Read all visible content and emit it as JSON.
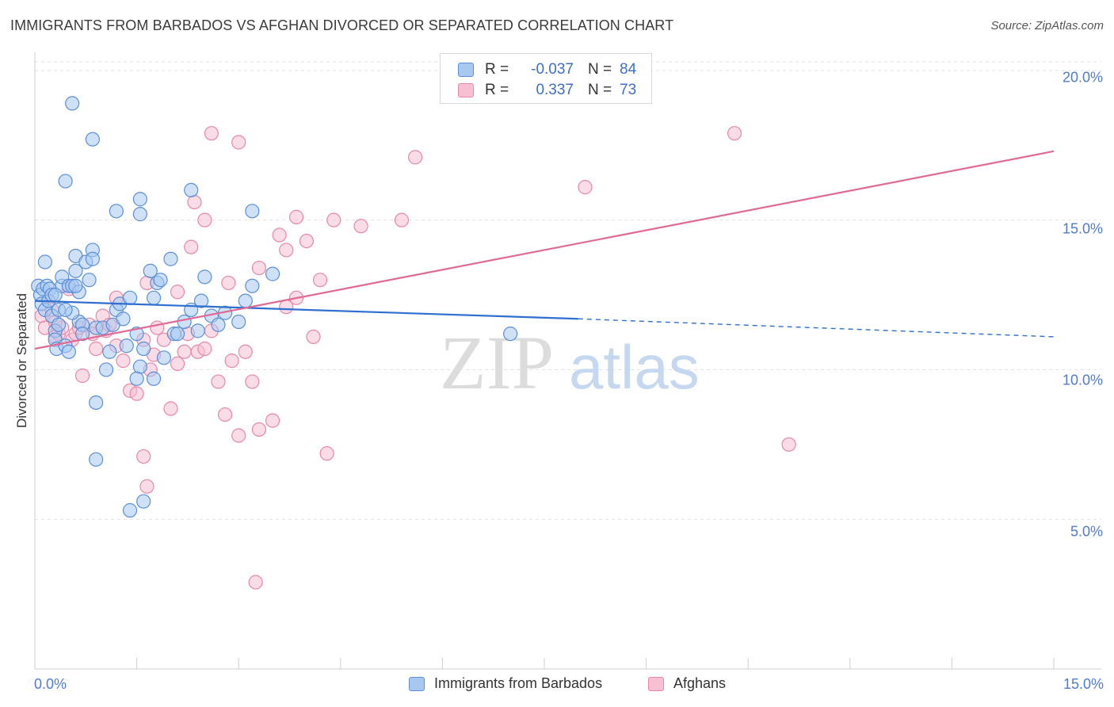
{
  "header": {
    "title": "IMMIGRANTS FROM BARBADOS VS AFGHAN DIVORCED OR SEPARATED CORRELATION CHART",
    "source": "Source: ZipAtlas.com"
  },
  "watermark": {
    "zip": "ZIP",
    "atlas": "atlas"
  },
  "legend_top": {
    "rows": [
      {
        "r_label": "R =",
        "r_value": "-0.037",
        "n_label": "N =",
        "n_value": "84"
      },
      {
        "r_label": "R =",
        "r_value": "0.337",
        "n_label": "N =",
        "n_value": "73"
      }
    ]
  },
  "legend_bottom": {
    "items": [
      "Immigrants from Barbados",
      "Afghans"
    ]
  },
  "colors": {
    "blue_fill": "#a8c8f0",
    "blue_stroke": "#5b8fd9",
    "blue_line": "#2f6fcf",
    "pink_fill": "#f6c0d2",
    "pink_stroke": "#e887a8",
    "pink_line": "#e06a95",
    "tick_label": "#4f7bd0",
    "grid": "#e2e2e2"
  },
  "chart_data": {
    "type": "scatter",
    "title": "IMMIGRANTS FROM BARBADOS VS AFGHAN DIVORCED OR SEPARATED CORRELATION CHART",
    "xlabel": "",
    "ylabel": "Divorced or Separated",
    "xlim": [
      0,
      15
    ],
    "ylim": [
      0,
      20.5
    ],
    "x_tick_labels": [
      "0.0%",
      "15.0%"
    ],
    "y_ticks": [
      5,
      10,
      15,
      20
    ],
    "y_tick_labels": [
      "5.0%",
      "10.0%",
      "15.0%",
      "20.0%"
    ],
    "grid": true,
    "legend_position": "top-center",
    "series": [
      {
        "name": "Immigrants from Barbados",
        "color": "blue",
        "r": -0.037,
        "n": 84,
        "trend": {
          "x0": 0,
          "y0": 12.3,
          "x1": 8.0,
          "y1": 11.7,
          "dashed_to_x": 15.0,
          "dashed_to_y": 11.1
        },
        "points": [
          [
            0.05,
            12.8
          ],
          [
            0.08,
            12.5
          ],
          [
            0.1,
            12.2
          ],
          [
            0.12,
            12.7
          ],
          [
            0.15,
            12.0
          ],
          [
            0.18,
            12.8
          ],
          [
            0.2,
            12.3
          ],
          [
            0.22,
            12.7
          ],
          [
            0.25,
            11.8
          ],
          [
            0.3,
            11.3
          ],
          [
            0.3,
            11.0
          ],
          [
            0.32,
            10.7
          ],
          [
            0.35,
            12.0
          ],
          [
            0.4,
            12.8
          ],
          [
            0.4,
            13.1
          ],
          [
            0.45,
            10.8
          ],
          [
            0.5,
            10.6
          ],
          [
            0.5,
            12.8
          ],
          [
            0.55,
            12.8
          ],
          [
            0.6,
            13.3
          ],
          [
            0.6,
            13.8
          ],
          [
            0.65,
            12.6
          ],
          [
            0.65,
            11.6
          ],
          [
            0.7,
            11.5
          ],
          [
            0.75,
            13.6
          ],
          [
            0.8,
            13.0
          ],
          [
            0.85,
            14.0
          ],
          [
            0.85,
            13.7
          ],
          [
            0.9,
            11.4
          ],
          [
            1.0,
            11.4
          ],
          [
            1.05,
            10.0
          ],
          [
            1.1,
            10.6
          ],
          [
            1.15,
            11.5
          ],
          [
            1.2,
            12.0
          ],
          [
            1.25,
            12.2
          ],
          [
            1.3,
            11.7
          ],
          [
            1.35,
            10.8
          ],
          [
            1.4,
            12.4
          ],
          [
            1.5,
            11.2
          ],
          [
            1.55,
            10.1
          ],
          [
            1.6,
            10.7
          ],
          [
            1.7,
            13.3
          ],
          [
            1.75,
            12.4
          ],
          [
            1.8,
            12.9
          ],
          [
            1.85,
            13.0
          ],
          [
            1.9,
            10.4
          ],
          [
            2.0,
            13.7
          ],
          [
            2.05,
            11.2
          ],
          [
            2.1,
            11.2
          ],
          [
            2.2,
            11.6
          ],
          [
            2.3,
            12.0
          ],
          [
            2.4,
            11.3
          ],
          [
            2.45,
            12.3
          ],
          [
            2.5,
            13.1
          ],
          [
            2.6,
            11.8
          ],
          [
            2.7,
            11.5
          ],
          [
            2.8,
            11.9
          ],
          [
            3.0,
            11.6
          ],
          [
            3.1,
            12.3
          ],
          [
            3.2,
            12.8
          ],
          [
            3.5,
            13.2
          ],
          [
            0.25,
            12.5
          ],
          [
            0.35,
            11.5
          ],
          [
            0.55,
            11.9
          ],
          [
            0.7,
            11.2
          ],
          [
            0.15,
            13.6
          ],
          [
            0.9,
            8.9
          ],
          [
            0.55,
            18.9
          ],
          [
            0.85,
            17.7
          ],
          [
            0.45,
            16.3
          ],
          [
            1.2,
            15.3
          ],
          [
            1.55,
            15.7
          ],
          [
            1.55,
            15.2
          ],
          [
            2.3,
            16.0
          ],
          [
            3.2,
            15.3
          ],
          [
            0.9,
            7.0
          ],
          [
            1.4,
            5.3
          ],
          [
            1.6,
            5.6
          ],
          [
            1.5,
            9.7
          ],
          [
            1.75,
            9.7
          ],
          [
            7.0,
            11.2
          ],
          [
            0.3,
            12.5
          ],
          [
            0.6,
            12.8
          ],
          [
            0.45,
            12.0
          ]
        ]
      },
      {
        "name": "Afghans",
        "color": "pink",
        "r": 0.337,
        "n": 73,
        "trend": {
          "x0": 0,
          "y0": 10.7,
          "x1": 15.0,
          "y1": 17.3
        },
        "points": [
          [
            0.1,
            11.8
          ],
          [
            0.15,
            11.4
          ],
          [
            0.2,
            12.3
          ],
          [
            0.25,
            12.0
          ],
          [
            0.3,
            11.1
          ],
          [
            0.35,
            11.2
          ],
          [
            0.4,
            11.4
          ],
          [
            0.5,
            12.7
          ],
          [
            0.55,
            11.0
          ],
          [
            0.6,
            11.2
          ],
          [
            0.65,
            11.4
          ],
          [
            0.7,
            9.8
          ],
          [
            0.8,
            11.5
          ],
          [
            0.85,
            11.2
          ],
          [
            0.9,
            10.7
          ],
          [
            1.0,
            11.8
          ],
          [
            1.05,
            11.3
          ],
          [
            1.1,
            11.5
          ],
          [
            1.2,
            10.8
          ],
          [
            1.3,
            10.3
          ],
          [
            1.4,
            9.3
          ],
          [
            1.5,
            9.2
          ],
          [
            1.6,
            11.0
          ],
          [
            1.65,
            12.9
          ],
          [
            1.7,
            10.0
          ],
          [
            1.75,
            10.5
          ],
          [
            1.8,
            11.4
          ],
          [
            1.9,
            11.0
          ],
          [
            2.0,
            8.7
          ],
          [
            2.1,
            10.2
          ],
          [
            2.2,
            10.6
          ],
          [
            2.25,
            11.2
          ],
          [
            2.3,
            14.1
          ],
          [
            2.4,
            10.6
          ],
          [
            2.5,
            10.7
          ],
          [
            2.6,
            11.3
          ],
          [
            2.7,
            9.6
          ],
          [
            2.8,
            8.5
          ],
          [
            2.9,
            10.3
          ],
          [
            3.0,
            7.8
          ],
          [
            3.1,
            10.6
          ],
          [
            3.2,
            9.6
          ],
          [
            3.3,
            8.0
          ],
          [
            3.5,
            8.3
          ],
          [
            3.7,
            12.1
          ],
          [
            3.85,
            12.4
          ],
          [
            4.1,
            11.1
          ],
          [
            4.2,
            13.0
          ],
          [
            4.3,
            7.2
          ],
          [
            3.6,
            14.5
          ],
          [
            3.7,
            14.0
          ],
          [
            3.3,
            13.4
          ],
          [
            2.85,
            12.9
          ],
          [
            4.0,
            14.3
          ],
          [
            4.4,
            15.0
          ],
          [
            4.8,
            14.8
          ],
          [
            5.4,
            15.0
          ],
          [
            3.85,
            15.1
          ],
          [
            2.5,
            15.0
          ],
          [
            2.35,
            15.6
          ],
          [
            2.6,
            17.9
          ],
          [
            3.0,
            17.6
          ],
          [
            5.6,
            17.1
          ],
          [
            8.1,
            16.1
          ],
          [
            8.6,
            19.5
          ],
          [
            10.3,
            17.9
          ],
          [
            11.1,
            7.5
          ],
          [
            1.6,
            7.1
          ],
          [
            1.65,
            6.1
          ],
          [
            3.25,
            2.9
          ],
          [
            2.1,
            12.6
          ],
          [
            1.2,
            12.4
          ],
          [
            0.3,
            11.6
          ]
        ]
      }
    ]
  }
}
